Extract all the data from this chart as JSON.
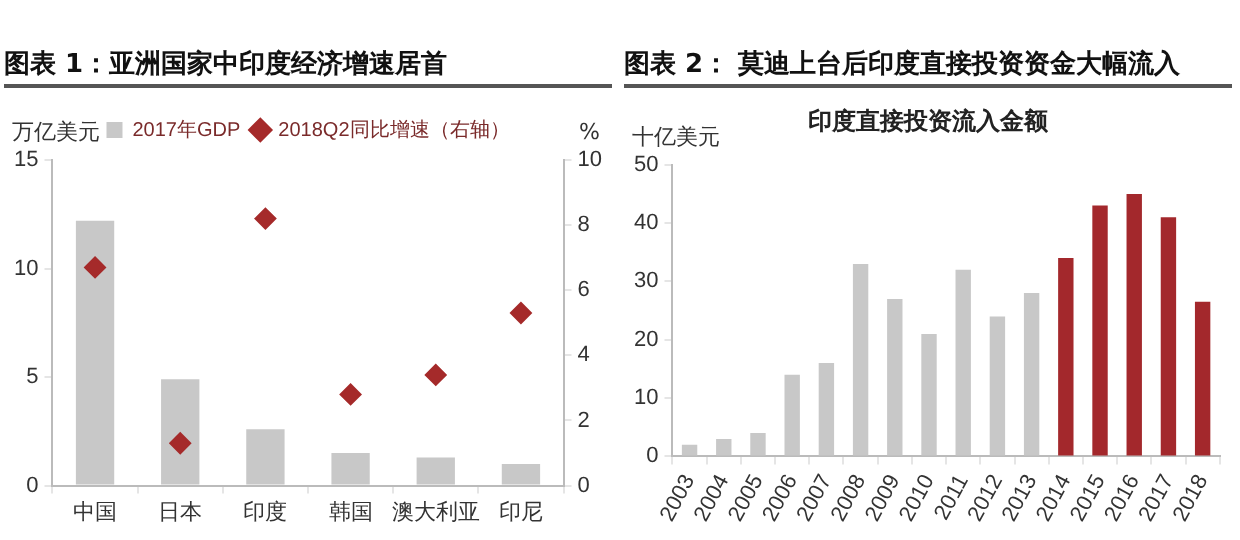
{
  "chart_data": [
    {
      "type": "bar",
      "title": "图表 1：亚洲国家中印度经济增速居首",
      "ylabel": "万亿美元",
      "y2label": "%",
      "categories": [
        "中国",
        "日本",
        "印度",
        "韩国",
        "澳大利亚",
        "印尼"
      ],
      "series": [
        {
          "name": "2017年GDP",
          "color": "#c8c8c8",
          "values": [
            12.2,
            4.9,
            2.6,
            1.5,
            1.3,
            1.0
          ]
        },
        {
          "name": "2018Q2同比增速（右轴）",
          "type": "scatter",
          "axis": "y2",
          "marker": "diamond",
          "color": "#a52a2a",
          "values": [
            6.7,
            1.3,
            8.2,
            2.8,
            3.4,
            5.3
          ]
        }
      ],
      "ylim": [
        0,
        15
      ],
      "yticks": [
        0,
        5,
        10,
        15
      ],
      "y2lim": [
        0,
        10
      ],
      "y2ticks": [
        0,
        2,
        4,
        6,
        8,
        10
      ],
      "grid": false,
      "legend": "top"
    },
    {
      "type": "bar",
      "title": "图表 2： 莫迪上台后印度直接投资资金大幅流入",
      "subtitle": "印度直接投资流入金额",
      "ylabel": "十亿美元",
      "categories": [
        "2003",
        "2004",
        "2005",
        "2006",
        "2007",
        "2008",
        "2009",
        "2010",
        "2011",
        "2012",
        "2013",
        "2014",
        "2015",
        "2016",
        "2017",
        "2018"
      ],
      "values": [
        2,
        3,
        4,
        14,
        16,
        33,
        27,
        21,
        32,
        24,
        28,
        34,
        43,
        45,
        41,
        26.5
      ],
      "colors": [
        "#c8c8c8",
        "#c8c8c8",
        "#c8c8c8",
        "#c8c8c8",
        "#c8c8c8",
        "#c8c8c8",
        "#c8c8c8",
        "#c8c8c8",
        "#c8c8c8",
        "#c8c8c8",
        "#c8c8c8",
        "#a3282c",
        "#a3282c",
        "#a3282c",
        "#a3282c",
        "#a3282c"
      ],
      "ylim": [
        0,
        50
      ],
      "yticks": [
        0,
        10,
        20,
        30,
        40,
        50
      ],
      "grid": false,
      "legend": false
    }
  ]
}
